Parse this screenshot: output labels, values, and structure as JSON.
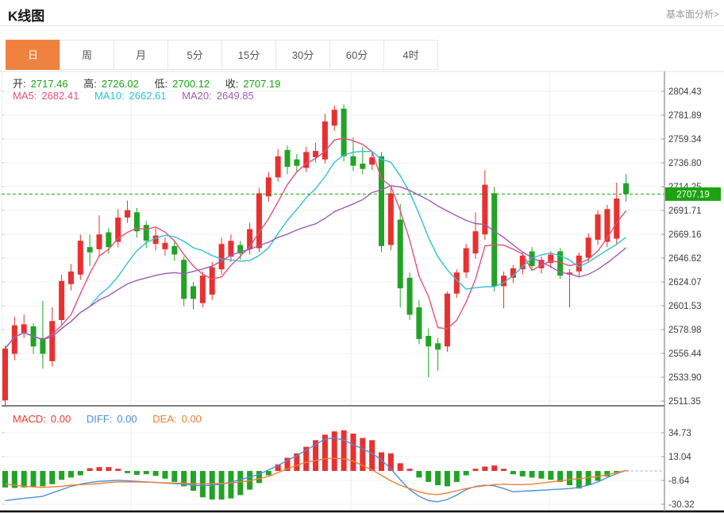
{
  "header": {
    "title": "K线图",
    "link": "基本面分析>"
  },
  "tabs": {
    "items": [
      {
        "name": "day",
        "label": "日",
        "active": true
      },
      {
        "name": "week",
        "label": "周",
        "active": false
      },
      {
        "name": "month",
        "label": "月",
        "active": false
      },
      {
        "name": "5min",
        "label": "5分",
        "active": false
      },
      {
        "name": "15min",
        "label": "15分",
        "active": false
      },
      {
        "name": "30min",
        "label": "30分",
        "active": false
      },
      {
        "name": "60min",
        "label": "60分",
        "active": false
      },
      {
        "name": "4hour",
        "label": "4时",
        "active": false
      }
    ]
  },
  "legend": {
    "ohlc": [
      {
        "label": "开:",
        "value": "2717.46"
      },
      {
        "label": "高:",
        "value": "2726.02"
      },
      {
        "label": "低:",
        "value": "2700.12"
      },
      {
        "label": "收:",
        "value": "2707.19"
      }
    ],
    "ma": [
      {
        "label": "MA5:",
        "value": "2682.41",
        "color": "#e8507a"
      },
      {
        "label": "MA10:",
        "value": "2662.61",
        "color": "#2fc1d4"
      },
      {
        "label": "MA20:",
        "value": "2649.85",
        "color": "#9d5cb5"
      }
    ],
    "macd": [
      {
        "label": "MACD:",
        "value": "0.00",
        "color": "#e83b33"
      },
      {
        "label": "DIFF:",
        "value": "0.00",
        "color": "#4b8fdd"
      },
      {
        "label": "DEA:",
        "value": "0.00",
        "color": "#ef8032"
      }
    ]
  },
  "chart_data": {
    "type": "candlestick+macd",
    "main": {
      "type": "candlestick",
      "up_color": "#e93030",
      "down_color": "#22a327",
      "grid": true,
      "legend_position": "top-left",
      "current_price": 2707.19,
      "current_price_label": "2707.19",
      "current_price_color": "#1ba312",
      "y_ticks": [
        2804.43,
        2781.89,
        2759.34,
        2736.8,
        2714.25,
        2691.71,
        2669.16,
        2646.62,
        2624.07,
        2601.53,
        2578.98,
        2556.44,
        2533.9,
        2511.35
      ],
      "ma_periods": [
        5,
        10,
        20
      ],
      "ma_colors": [
        "#e8507a",
        "#2fc1d4",
        "#9d5cb5"
      ],
      "candles": [
        [
          2512,
          2564,
          2506,
          2561
        ],
        [
          2556,
          2591,
          2550,
          2583
        ],
        [
          2576,
          2593,
          2571,
          2584
        ],
        [
          2582,
          2585,
          2556,
          2563
        ],
        [
          2571,
          2606,
          2542,
          2556
        ],
        [
          2549,
          2600,
          2544,
          2587
        ],
        [
          2588,
          2631,
          2584,
          2625
        ],
        [
          2622,
          2641,
          2616,
          2634
        ],
        [
          2631,
          2669,
          2626,
          2663
        ],
        [
          2657,
          2669,
          2639,
          2652
        ],
        [
          2655,
          2687,
          2649,
          2669
        ],
        [
          2671,
          2675,
          2651,
          2657
        ],
        [
          2662,
          2693,
          2657,
          2685
        ],
        [
          2685,
          2701,
          2680,
          2692
        ],
        [
          2690,
          2694,
          2666,
          2672
        ],
        [
          2678,
          2682,
          2656,
          2663
        ],
        [
          2660,
          2675,
          2654,
          2668
        ],
        [
          2655,
          2666,
          2649,
          2661
        ],
        [
          2658,
          2663,
          2644,
          2650
        ],
        [
          2645,
          2648,
          2601,
          2608
        ],
        [
          2620,
          2624,
          2598,
          2608
        ],
        [
          2604,
          2634,
          2600,
          2630
        ],
        [
          2612,
          2643,
          2607,
          2638
        ],
        [
          2636,
          2666,
          2631,
          2660
        ],
        [
          2648,
          2669,
          2643,
          2663
        ],
        [
          2659,
          2663,
          2645,
          2651
        ],
        [
          2655,
          2680,
          2650,
          2674
        ],
        [
          2656,
          2713,
          2652,
          2708
        ],
        [
          2705,
          2728,
          2700,
          2723
        ],
        [
          2723,
          2750,
          2719,
          2743
        ],
        [
          2749,
          2753,
          2726,
          2733
        ],
        [
          2740,
          2745,
          2728,
          2734
        ],
        [
          2732,
          2752,
          2728,
          2747
        ],
        [
          2742,
          2756,
          2737,
          2748
        ],
        [
          2740,
          2783,
          2736,
          2776
        ],
        [
          2772,
          2791,
          2767,
          2787
        ],
        [
          2788,
          2792,
          2738,
          2743
        ],
        [
          2743,
          2761,
          2729,
          2734
        ],
        [
          2736,
          2752,
          2726,
          2731
        ],
        [
          2735,
          2747,
          2730,
          2742
        ],
        [
          2743,
          2747,
          2652,
          2658
        ],
        [
          2659,
          2713,
          2654,
          2708
        ],
        [
          2683,
          2698,
          2600,
          2618
        ],
        [
          2628,
          2633,
          2588,
          2593
        ],
        [
          2600,
          2607,
          2565,
          2570
        ],
        [
          2573,
          2580,
          2534,
          2563
        ],
        [
          2566,
          2571,
          2540,
          2560
        ],
        [
          2563,
          2615,
          2558,
          2613
        ],
        [
          2613,
          2636,
          2609,
          2633
        ],
        [
          2633,
          2660,
          2628,
          2656
        ],
        [
          2651,
          2690,
          2646,
          2672
        ],
        [
          2669,
          2730,
          2664,
          2716
        ],
        [
          2708,
          2714,
          2615,
          2620
        ],
        [
          2620,
          2634,
          2599,
          2630
        ],
        [
          2628,
          2640,
          2623,
          2637
        ],
        [
          2636,
          2652,
          2631,
          2649
        ],
        [
          2653,
          2657,
          2636,
          2639
        ],
        [
          2637,
          2648,
          2632,
          2645
        ],
        [
          2642,
          2653,
          2637,
          2650
        ],
        [
          2653,
          2656,
          2627,
          2630
        ],
        [
          2631,
          2636,
          2600,
          2633
        ],
        [
          2634,
          2652,
          2629,
          2649
        ],
        [
          2647,
          2670,
          2642,
          2666
        ],
        [
          2664,
          2692,
          2659,
          2688
        ],
        [
          2662,
          2697,
          2657,
          2693
        ],
        [
          2665,
          2718,
          2660,
          2703
        ],
        [
          2717.46,
          2726.02,
          2700.12,
          2707.19
        ]
      ]
    },
    "macd": {
      "type": "bar+line",
      "y_ticks": [
        34.73,
        13.04,
        -8.64,
        -30.32
      ],
      "bar_up_color": "#e93030",
      "bar_down_color": "#22a327",
      "diff_color": "#4b8fdd",
      "dea_color": "#ef8032",
      "zero_dash_color": "#8fc1e8",
      "hist": [
        -15,
        -15.5,
        -15,
        -14.5,
        -14,
        -12,
        -8,
        -6,
        -4,
        2.5,
        3.5,
        3.5,
        2,
        -2,
        -3.5,
        -3,
        -4.5,
        -7,
        -10,
        -14,
        -18,
        -24,
        -26,
        -26,
        -25,
        -22,
        -17,
        -11,
        -4,
        6,
        12,
        16,
        22,
        28,
        33,
        36,
        37,
        34,
        30,
        28,
        17,
        16,
        7,
        2,
        -6,
        -10,
        -13,
        -14,
        -10,
        -4,
        2,
        4,
        5,
        2,
        -3,
        -5,
        -6,
        -7,
        -8,
        -10,
        -13,
        -16,
        -13,
        -9,
        -5,
        -2,
        0.5
      ],
      "diff": [
        -27,
        -26,
        -25,
        -24,
        -23,
        -20,
        -17,
        -14,
        -12,
        -10.5,
        -9.5,
        -9,
        -8.5,
        -9,
        -9.5,
        -10,
        -10.5,
        -11,
        -11.5,
        -12,
        -13,
        -13.5,
        -13,
        -12,
        -10,
        -8,
        -5.5,
        -3,
        1,
        5,
        9.5,
        14,
        19,
        24,
        29,
        30,
        28,
        24,
        20,
        16,
        10,
        2,
        -8,
        -17,
        -23,
        -27,
        -28,
        -26,
        -22,
        -17,
        -14,
        -13,
        -13.5,
        -16,
        -19,
        -18.5,
        -18,
        -17.5,
        -17,
        -16.5,
        -16,
        -15,
        -13,
        -10,
        -6,
        -2.5,
        0.5
      ],
      "dea": [
        -12,
        -13,
        -14,
        -14.5,
        -15,
        -14.5,
        -14,
        -13,
        -12.5,
        -12,
        -11.5,
        -10.5,
        -10,
        -10,
        -10,
        -10.2,
        -10.5,
        -10.8,
        -11,
        -11.2,
        -11.5,
        -11.8,
        -11.6,
        -11.3,
        -11,
        -10,
        -9,
        -7,
        -5,
        -1.5,
        2,
        5,
        8,
        9.5,
        11,
        11.5,
        11,
        9,
        5,
        1,
        -4,
        -9,
        -13,
        -16,
        -19,
        -21,
        -21.5,
        -20,
        -18,
        -16,
        -14.5,
        -13.5,
        -12.5,
        -12,
        -12.5,
        -12.5,
        -12,
        -11,
        -10,
        -9,
        -8,
        -7,
        -6,
        -5,
        -3.5,
        -1.5,
        0.5
      ]
    }
  }
}
